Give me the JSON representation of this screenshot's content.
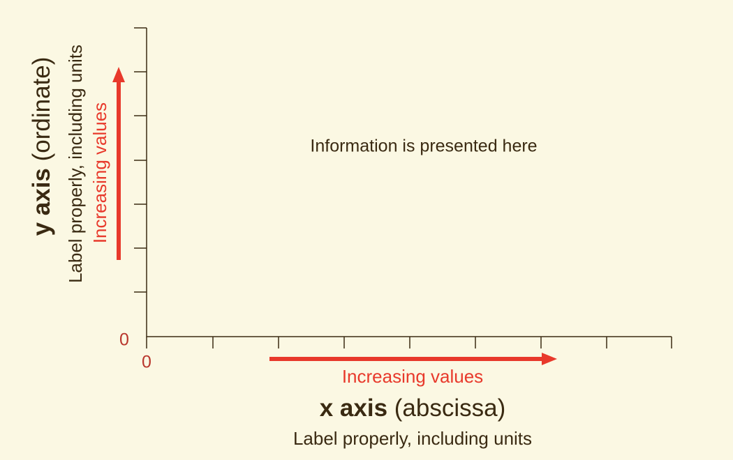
{
  "x_axis": {
    "origin_label": "0",
    "direction_label": "Increasing values",
    "title": "x axis",
    "title_note": "(abscissa)",
    "subtitle": "Label properly, including units"
  },
  "y_axis": {
    "origin_label": "0",
    "direction_label": "Increasing values",
    "title": "y axis",
    "title_note": "(ordinate)",
    "subtitle": "Label properly, including units"
  },
  "center_text": "Information is presented here"
}
